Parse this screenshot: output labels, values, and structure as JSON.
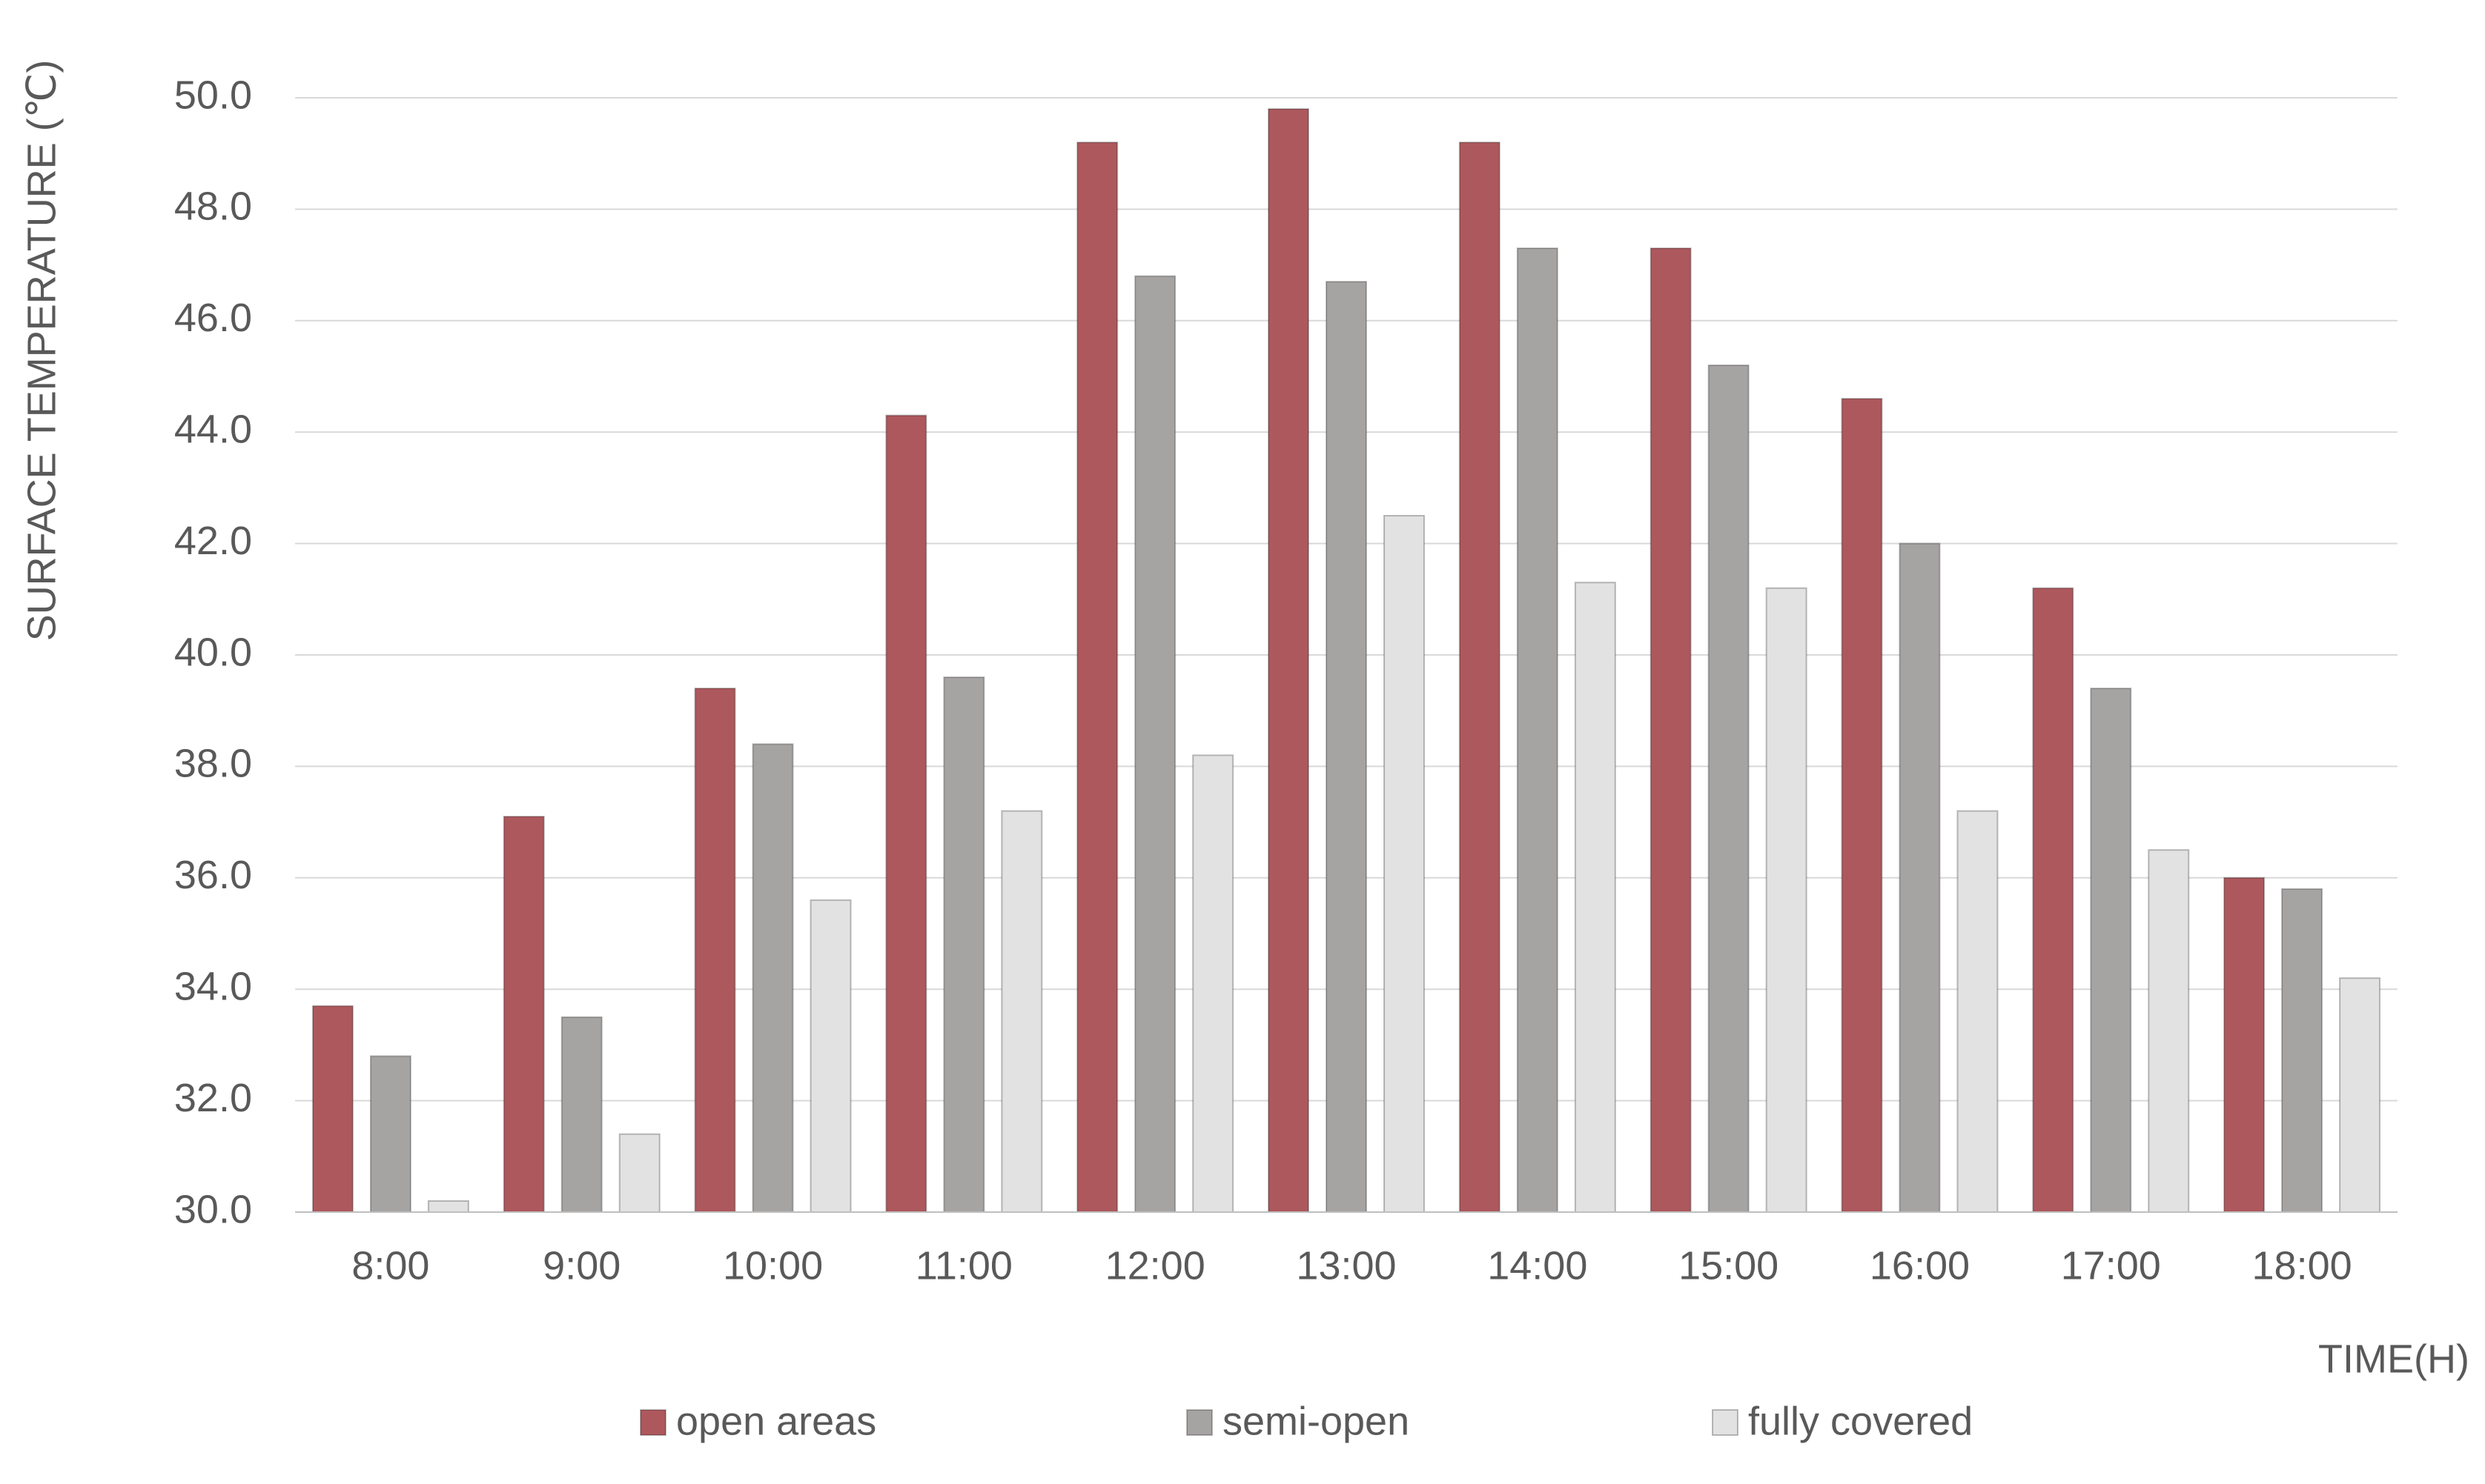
{
  "chart_data": {
    "type": "bar",
    "y_label": "SURFACE TEMPERATURE (℃)",
    "x_label": "TIME(H)",
    "categories": [
      "8:00",
      "9:00",
      "10:00",
      "11:00",
      "12:00",
      "13:00",
      "14:00",
      "15:00",
      "16:00",
      "17:00",
      "18:00"
    ],
    "series": [
      {
        "name": "open areas",
        "color": "#ad585d",
        "values": [
          33.7,
          37.1,
          39.4,
          44.3,
          49.2,
          49.8,
          49.2,
          47.3,
          44.6,
          41.2,
          36.0
        ]
      },
      {
        "name": "semi-open",
        "color": "#a6a3a3",
        "values": [
          32.8,
          33.5,
          38.4,
          39.6,
          46.8,
          46.7,
          47.3,
          45.2,
          42.0,
          39.4,
          35.8
        ]
      },
      {
        "name": "fully covered",
        "color": "#e2e2e2",
        "values": [
          30.2,
          31.4,
          35.6,
          37.2,
          38.2,
          42.5,
          41.3,
          41.2,
          37.2,
          36.5,
          34.2
        ]
      }
    ],
    "ylim": [
      30,
      50
    ],
    "yticks": [
      {
        "value": 30,
        "label": "30.0"
      },
      {
        "value": 32,
        "label": "32.0"
      },
      {
        "value": 34,
        "label": "34.0"
      },
      {
        "value": 36,
        "label": "36.0"
      },
      {
        "value": 38,
        "label": "38.0"
      },
      {
        "value": 40,
        "label": "40.0"
      },
      {
        "value": 42,
        "label": "42.0"
      },
      {
        "value": 44,
        "label": "44.0"
      },
      {
        "value": 46,
        "label": "46.0"
      },
      {
        "value": 48,
        "label": "48.0"
      },
      {
        "value": 50,
        "label": "50.0"
      }
    ],
    "grid": true
  }
}
